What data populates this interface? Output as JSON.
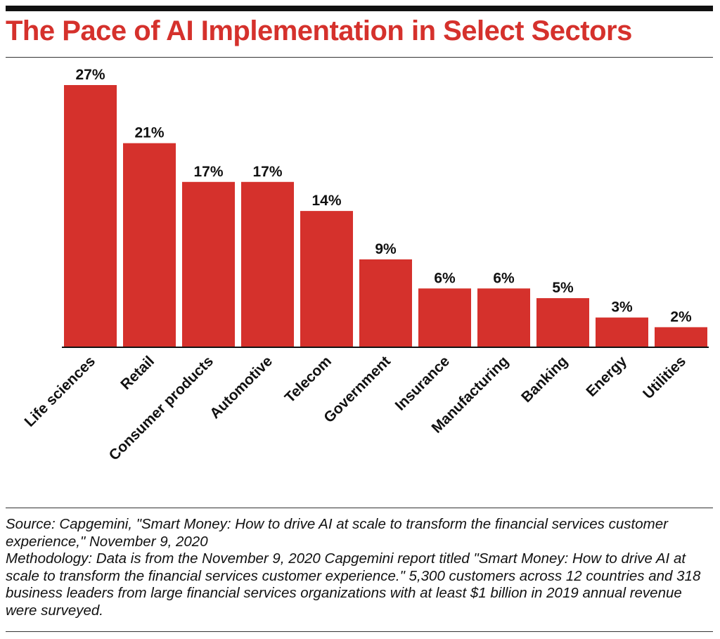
{
  "title": "The Pace of AI Implementation in Select Sectors",
  "chart_data": {
    "type": "bar",
    "title": "The Pace of AI Implementation in Select Sectors",
    "categories": [
      "Life sciences",
      "Retail",
      "Consumer products",
      "Automotive",
      "Telecom",
      "Government",
      "Insurance",
      "Manufacturing",
      "Banking",
      "Energy",
      "Utilities"
    ],
    "values": [
      27,
      21,
      17,
      17,
      14,
      9,
      6,
      6,
      5,
      3,
      2
    ],
    "value_labels": [
      "27%",
      "21%",
      "17%",
      "17%",
      "14%",
      "9%",
      "6%",
      "6%",
      "5%",
      "3%",
      "2%"
    ],
    "unit": "%",
    "xlabel": "",
    "ylabel": "",
    "ylim": [
      0,
      27
    ],
    "grid": false,
    "legend": "none",
    "bar_color": "#d5312c"
  },
  "notes": {
    "source": "Source: Capgemini, \"Smart Money: How to drive AI at scale to transform the financial services customer experience,\" November 9, 2020",
    "methodology": "Methodology: Data is from the November 9, 2020 Capgemini report titled \"Smart Money: How to drive AI at scale to transform the financial services customer experience.\" 5,300 customers across 12 countries and 318 business leaders from large financial services organizations with at least $1 billion in 2019 annual revenue were surveyed."
  },
  "colors": {
    "accent": "#d5312c",
    "text": "#111111",
    "rule": "#111111"
  }
}
